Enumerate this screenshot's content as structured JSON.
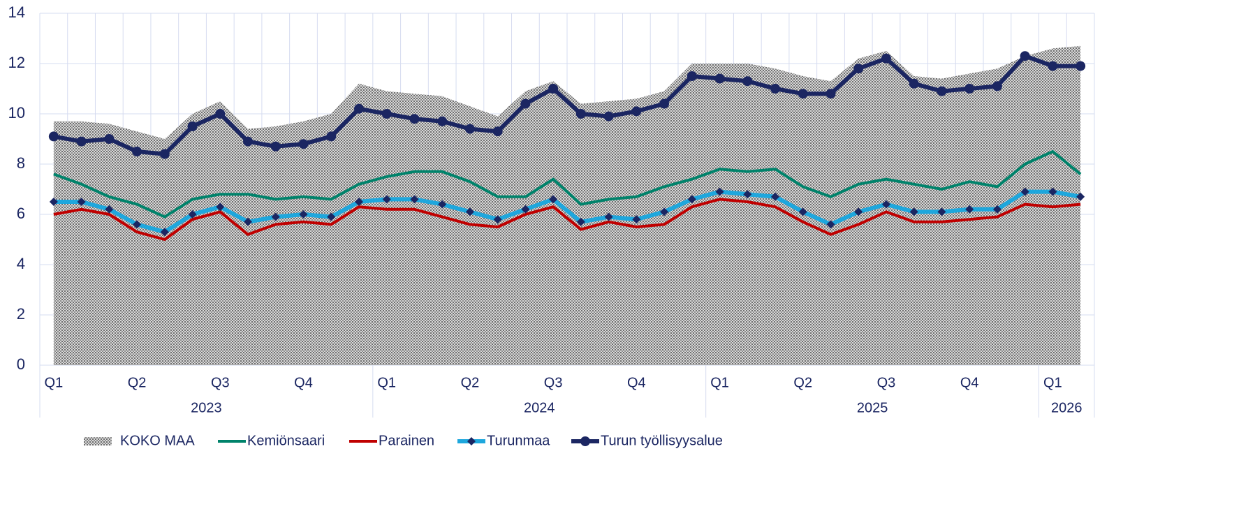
{
  "chart_data": {
    "type": "line",
    "categories": [
      "Q1",
      null,
      null,
      "Q2",
      null,
      null,
      "Q3",
      null,
      null,
      "Q4",
      null,
      null,
      "Q1",
      null,
      null,
      "Q2",
      null,
      null,
      "Q3",
      null,
      null,
      "Q4",
      null,
      null,
      "Q1",
      null,
      null,
      "Q2",
      null,
      null,
      "Q3",
      null,
      null,
      "Q4",
      null,
      null,
      "Q1",
      null
    ],
    "groups": [
      {
        "label": "2023",
        "count": 12
      },
      {
        "label": "2024",
        "count": 12
      },
      {
        "label": "2025",
        "count": 12
      },
      {
        "label": "2026",
        "count": 2
      }
    ],
    "ylim": [
      0,
      14
    ],
    "yticks": [
      0,
      2,
      4,
      6,
      8,
      10,
      12,
      14
    ],
    "grid": true,
    "legend": "bottom",
    "series": [
      {
        "name": "KOKO MAA",
        "kind": "area",
        "color": "#8c8c8c",
        "values": [
          9.7,
          9.7,
          9.6,
          9.3,
          9.0,
          10.0,
          10.5,
          9.4,
          9.5,
          9.7,
          10.0,
          11.2,
          10.9,
          10.8,
          10.7,
          10.3,
          9.9,
          10.9,
          11.3,
          10.4,
          10.5,
          10.6,
          10.9,
          12.0,
          12.0,
          12.0,
          11.8,
          11.5,
          11.3,
          12.2,
          12.5,
          11.5,
          11.4,
          11.6,
          11.8,
          12.3,
          12.6,
          12.7
        ]
      },
      {
        "name": "Kemiönsaari",
        "kind": "line",
        "color": "#00836b",
        "values": [
          7.6,
          7.2,
          6.7,
          6.4,
          5.9,
          6.6,
          6.8,
          6.8,
          6.6,
          6.7,
          6.6,
          7.2,
          7.5,
          7.7,
          7.7,
          7.3,
          6.7,
          6.7,
          7.4,
          6.4,
          6.6,
          6.7,
          7.1,
          7.4,
          7.8,
          7.7,
          7.8,
          7.1,
          6.7,
          7.2,
          7.4,
          7.2,
          7.0,
          7.3,
          7.1,
          8.0,
          8.5,
          7.6
        ]
      },
      {
        "name": "Parainen",
        "kind": "line",
        "color": "#c00000",
        "values": [
          6.0,
          6.2,
          6.0,
          5.3,
          5.0,
          5.8,
          6.1,
          5.2,
          5.6,
          5.7,
          5.6,
          6.3,
          6.2,
          6.2,
          5.9,
          5.6,
          5.5,
          6.0,
          6.3,
          5.4,
          5.7,
          5.5,
          5.6,
          6.3,
          6.6,
          6.5,
          6.3,
          5.7,
          5.2,
          5.6,
          6.1,
          5.7,
          5.7,
          5.8,
          5.9,
          6.4,
          6.3,
          6.4
        ]
      },
      {
        "name": "Turunmaa",
        "kind": "line",
        "color": "#1ea7dd",
        "marker": "diamond",
        "marker_color": "#1b2662",
        "values": [
          6.5,
          6.5,
          6.2,
          5.6,
          5.3,
          6.0,
          6.3,
          5.7,
          5.9,
          6.0,
          5.9,
          6.5,
          6.6,
          6.6,
          6.4,
          6.1,
          5.8,
          6.2,
          6.6,
          5.7,
          5.9,
          5.8,
          6.1,
          6.6,
          6.9,
          6.8,
          6.7,
          6.1,
          5.6,
          6.1,
          6.4,
          6.1,
          6.1,
          6.2,
          6.2,
          6.9,
          6.9,
          6.7
        ]
      },
      {
        "name": "Turun työllisyysalue",
        "kind": "line",
        "color": "#1b2662",
        "marker": "circle",
        "marker_color": "#1b2662",
        "values": [
          9.1,
          8.9,
          9.0,
          8.5,
          8.4,
          9.5,
          10.0,
          8.9,
          8.7,
          8.8,
          9.1,
          10.2,
          10.0,
          9.8,
          9.7,
          9.4,
          9.3,
          10.4,
          11.0,
          10.0,
          9.9,
          10.1,
          10.4,
          11.5,
          11.4,
          11.3,
          11.0,
          10.8,
          10.8,
          11.8,
          12.2,
          11.2,
          10.9,
          11.0,
          11.1,
          12.3,
          11.9,
          11.9
        ]
      }
    ]
  }
}
